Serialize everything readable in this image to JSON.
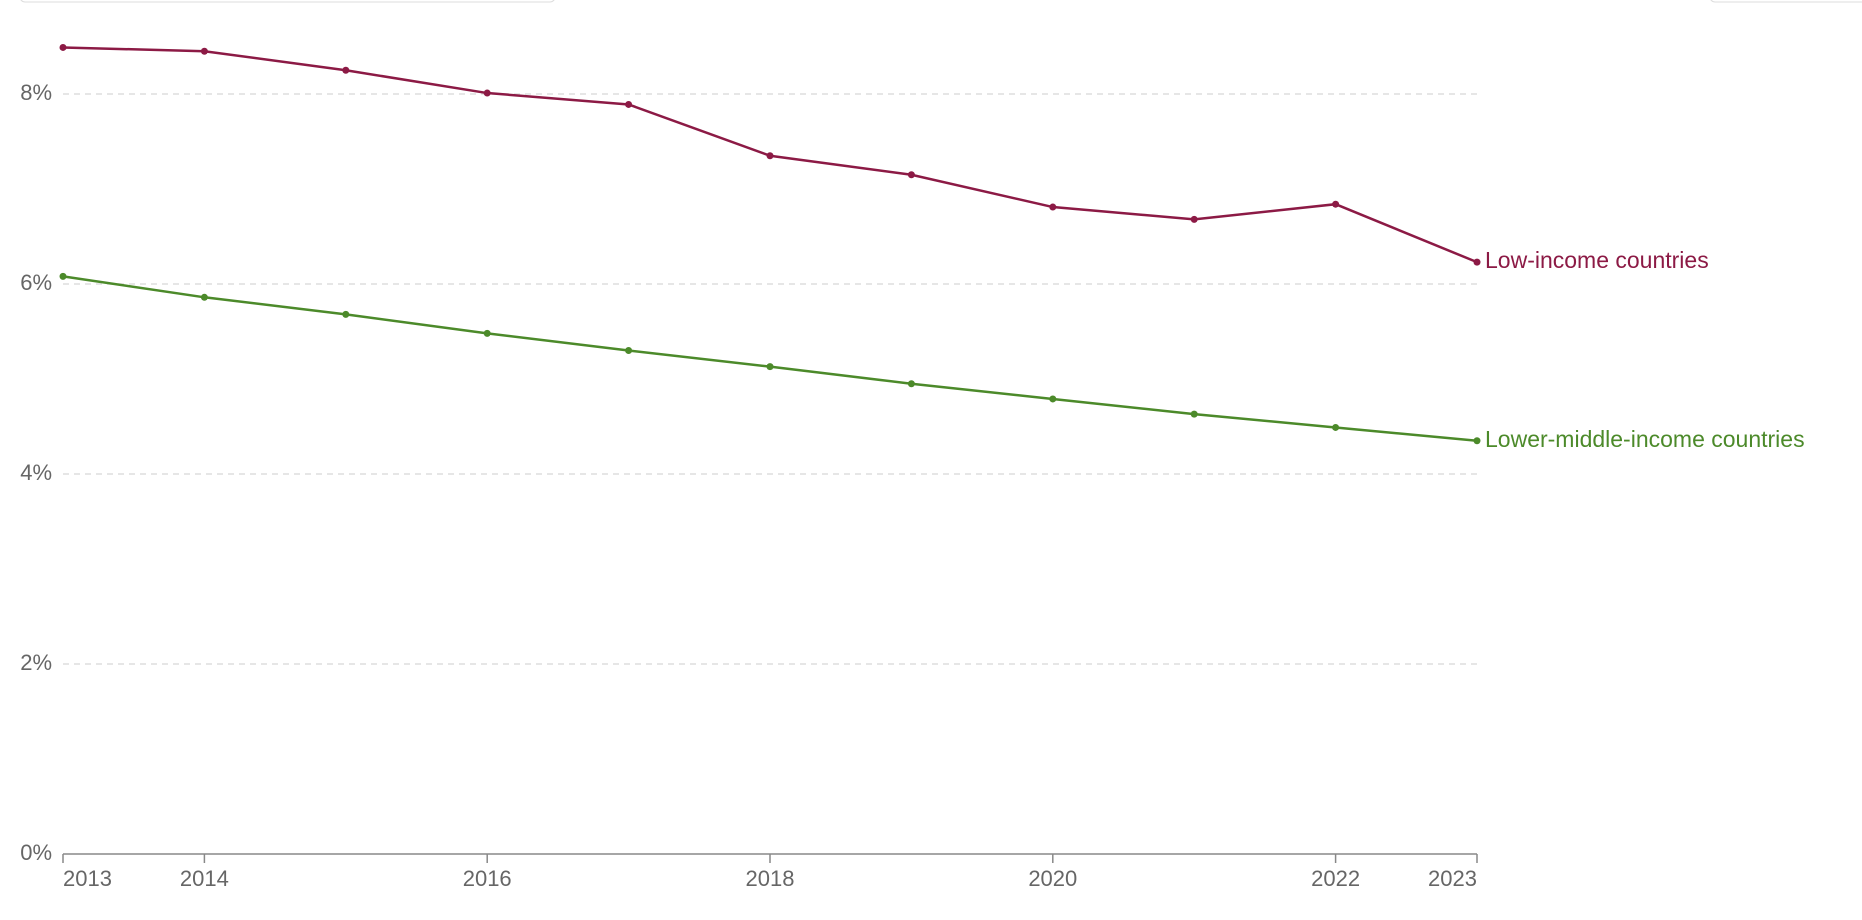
{
  "chart_data": {
    "type": "line",
    "x": [
      2013,
      2014,
      2015,
      2016,
      2017,
      2018,
      2019,
      2020,
      2021,
      2022,
      2023
    ],
    "series": [
      {
        "name": "Low-income countries",
        "color": "#8c1a45",
        "values": [
          8.49,
          8.45,
          8.25,
          8.01,
          7.89,
          7.35,
          7.15,
          6.81,
          6.68,
          6.84,
          6.23
        ]
      },
      {
        "name": "Lower-middle-income countries",
        "color": "#4c8a2a",
        "values": [
          6.08,
          5.86,
          5.68,
          5.48,
          5.3,
          5.13,
          4.95,
          4.79,
          4.63,
          4.49,
          4.35
        ]
      }
    ],
    "xlim": [
      2013,
      2023
    ],
    "xticks": [
      2013,
      2014,
      2016,
      2018,
      2020,
      2022,
      2023
    ],
    "ylim": [
      0,
      8.5
    ],
    "yticks": [
      {
        "value": 0,
        "label": "0%"
      },
      {
        "value": 2,
        "label": "2%"
      },
      {
        "value": 4,
        "label": "4%"
      },
      {
        "value": 6,
        "label": "6%"
      },
      {
        "value": 8,
        "label": "8%"
      }
    ],
    "grid": true
  }
}
